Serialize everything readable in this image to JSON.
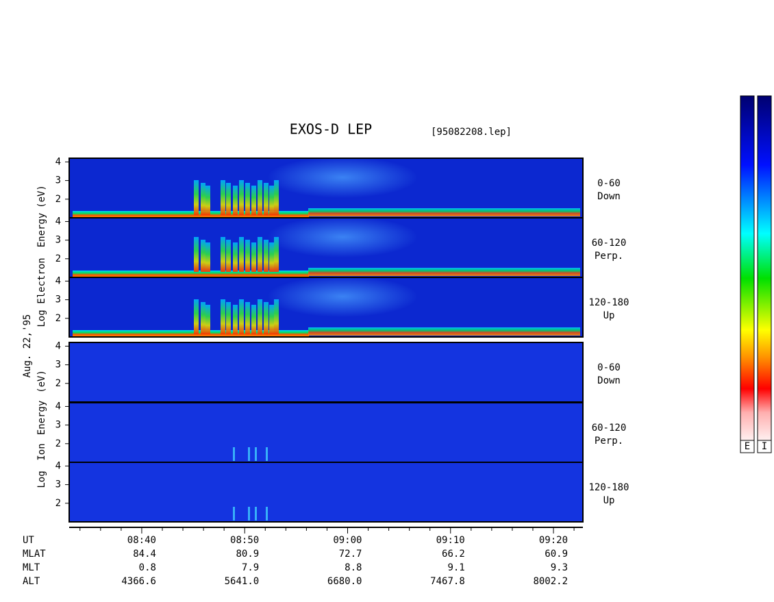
{
  "title": "EXOS-D LEP",
  "file": "[95082208.lep]",
  "date": "Aug. 22,'95",
  "electron_label": [
    "Log",
    "Electron",
    "Energy",
    "(eV)"
  ],
  "ion_label": [
    "Log",
    "Ion",
    "Energy",
    "(eV)"
  ],
  "ylim": [
    1,
    4.2
  ],
  "yticks": [
    2,
    3,
    4
  ],
  "pitch_angles": [
    {
      "range": "0-60",
      "direction": "Down"
    },
    {
      "range": "60-120",
      "direction": "Perp."
    },
    {
      "range": "120-180",
      "direction": "Up"
    }
  ],
  "time_axis": {
    "label": "UT",
    "xlim": [
      512.95,
      562.86
    ],
    "ticks": [
      {
        "value": 520,
        "label": "08:40"
      },
      {
        "value": 530,
        "label": "08:50"
      },
      {
        "value": 540,
        "label": "09:00"
      },
      {
        "value": 550,
        "label": "09:10"
      },
      {
        "value": 560,
        "label": "09:20"
      }
    ],
    "minor_ticks": [
      514,
      516,
      518,
      522,
      524,
      526,
      528,
      532,
      534,
      536,
      538,
      542,
      544,
      546,
      548,
      552,
      554,
      556,
      558,
      562
    ]
  },
  "ephemeris": [
    {
      "name": "MLAT",
      "values": [
        "84.4",
        "80.9",
        "72.7",
        "66.2",
        "60.9"
      ]
    },
    {
      "name": "MLT",
      "values": [
        "0.8",
        "7.9",
        "8.8",
        "9.1",
        "9.3"
      ]
    },
    {
      "name": "ALT",
      "values": [
        "4366.6",
        "5641.0",
        "6680.0",
        "7467.8",
        "8002.2"
      ]
    }
  ],
  "colorbar_labels": [
    "E",
    "I"
  ]
}
